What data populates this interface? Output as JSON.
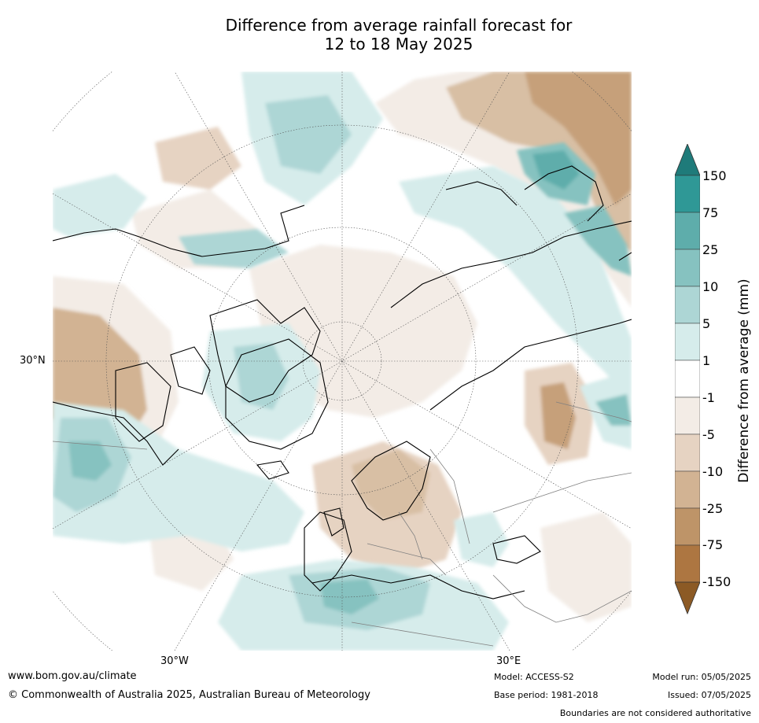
{
  "title_line1": "Difference from average rainfall forecast for",
  "title_line2": "12 to 18 May 2025",
  "map": {
    "lat_label": "30°N",
    "lon_labels": [
      "30°W",
      "30°E"
    ],
    "projection": "north polar stereographic",
    "colors": {
      "ocean_bg": "#ffffff",
      "coast": "#000000",
      "border": "#808080",
      "graticule": "#555555"
    }
  },
  "colorbar": {
    "title": "Difference from average (mm)",
    "labels": [
      "150",
      "75",
      "25",
      "10",
      "5",
      "1",
      "-1",
      "-5",
      "-10",
      "-25",
      "-75",
      "-150"
    ],
    "colors_top_to_bottom": [
      "#1f7b7a",
      "#2f9896",
      "#5eadab",
      "#86c2c0",
      "#add6d5",
      "#d6eceb",
      "#ffffff",
      "#f3ece6",
      "#e6d3c2",
      "#d2b393",
      "#be9468",
      "#ad7641",
      "#8c5a25"
    ]
  },
  "footer": {
    "website": "www.bom.gov.au/climate",
    "copyright": "© Commonwealth of Australia 2025, Australian Bureau of Meteorology",
    "model": "Model: ACCESS-S2",
    "base_period": "Base period: 1981-2018",
    "model_run": "Model run: 05/05/2025",
    "issued": "Issued: 07/05/2025",
    "disclaimer": "Boundaries are not considered authoritative"
  }
}
